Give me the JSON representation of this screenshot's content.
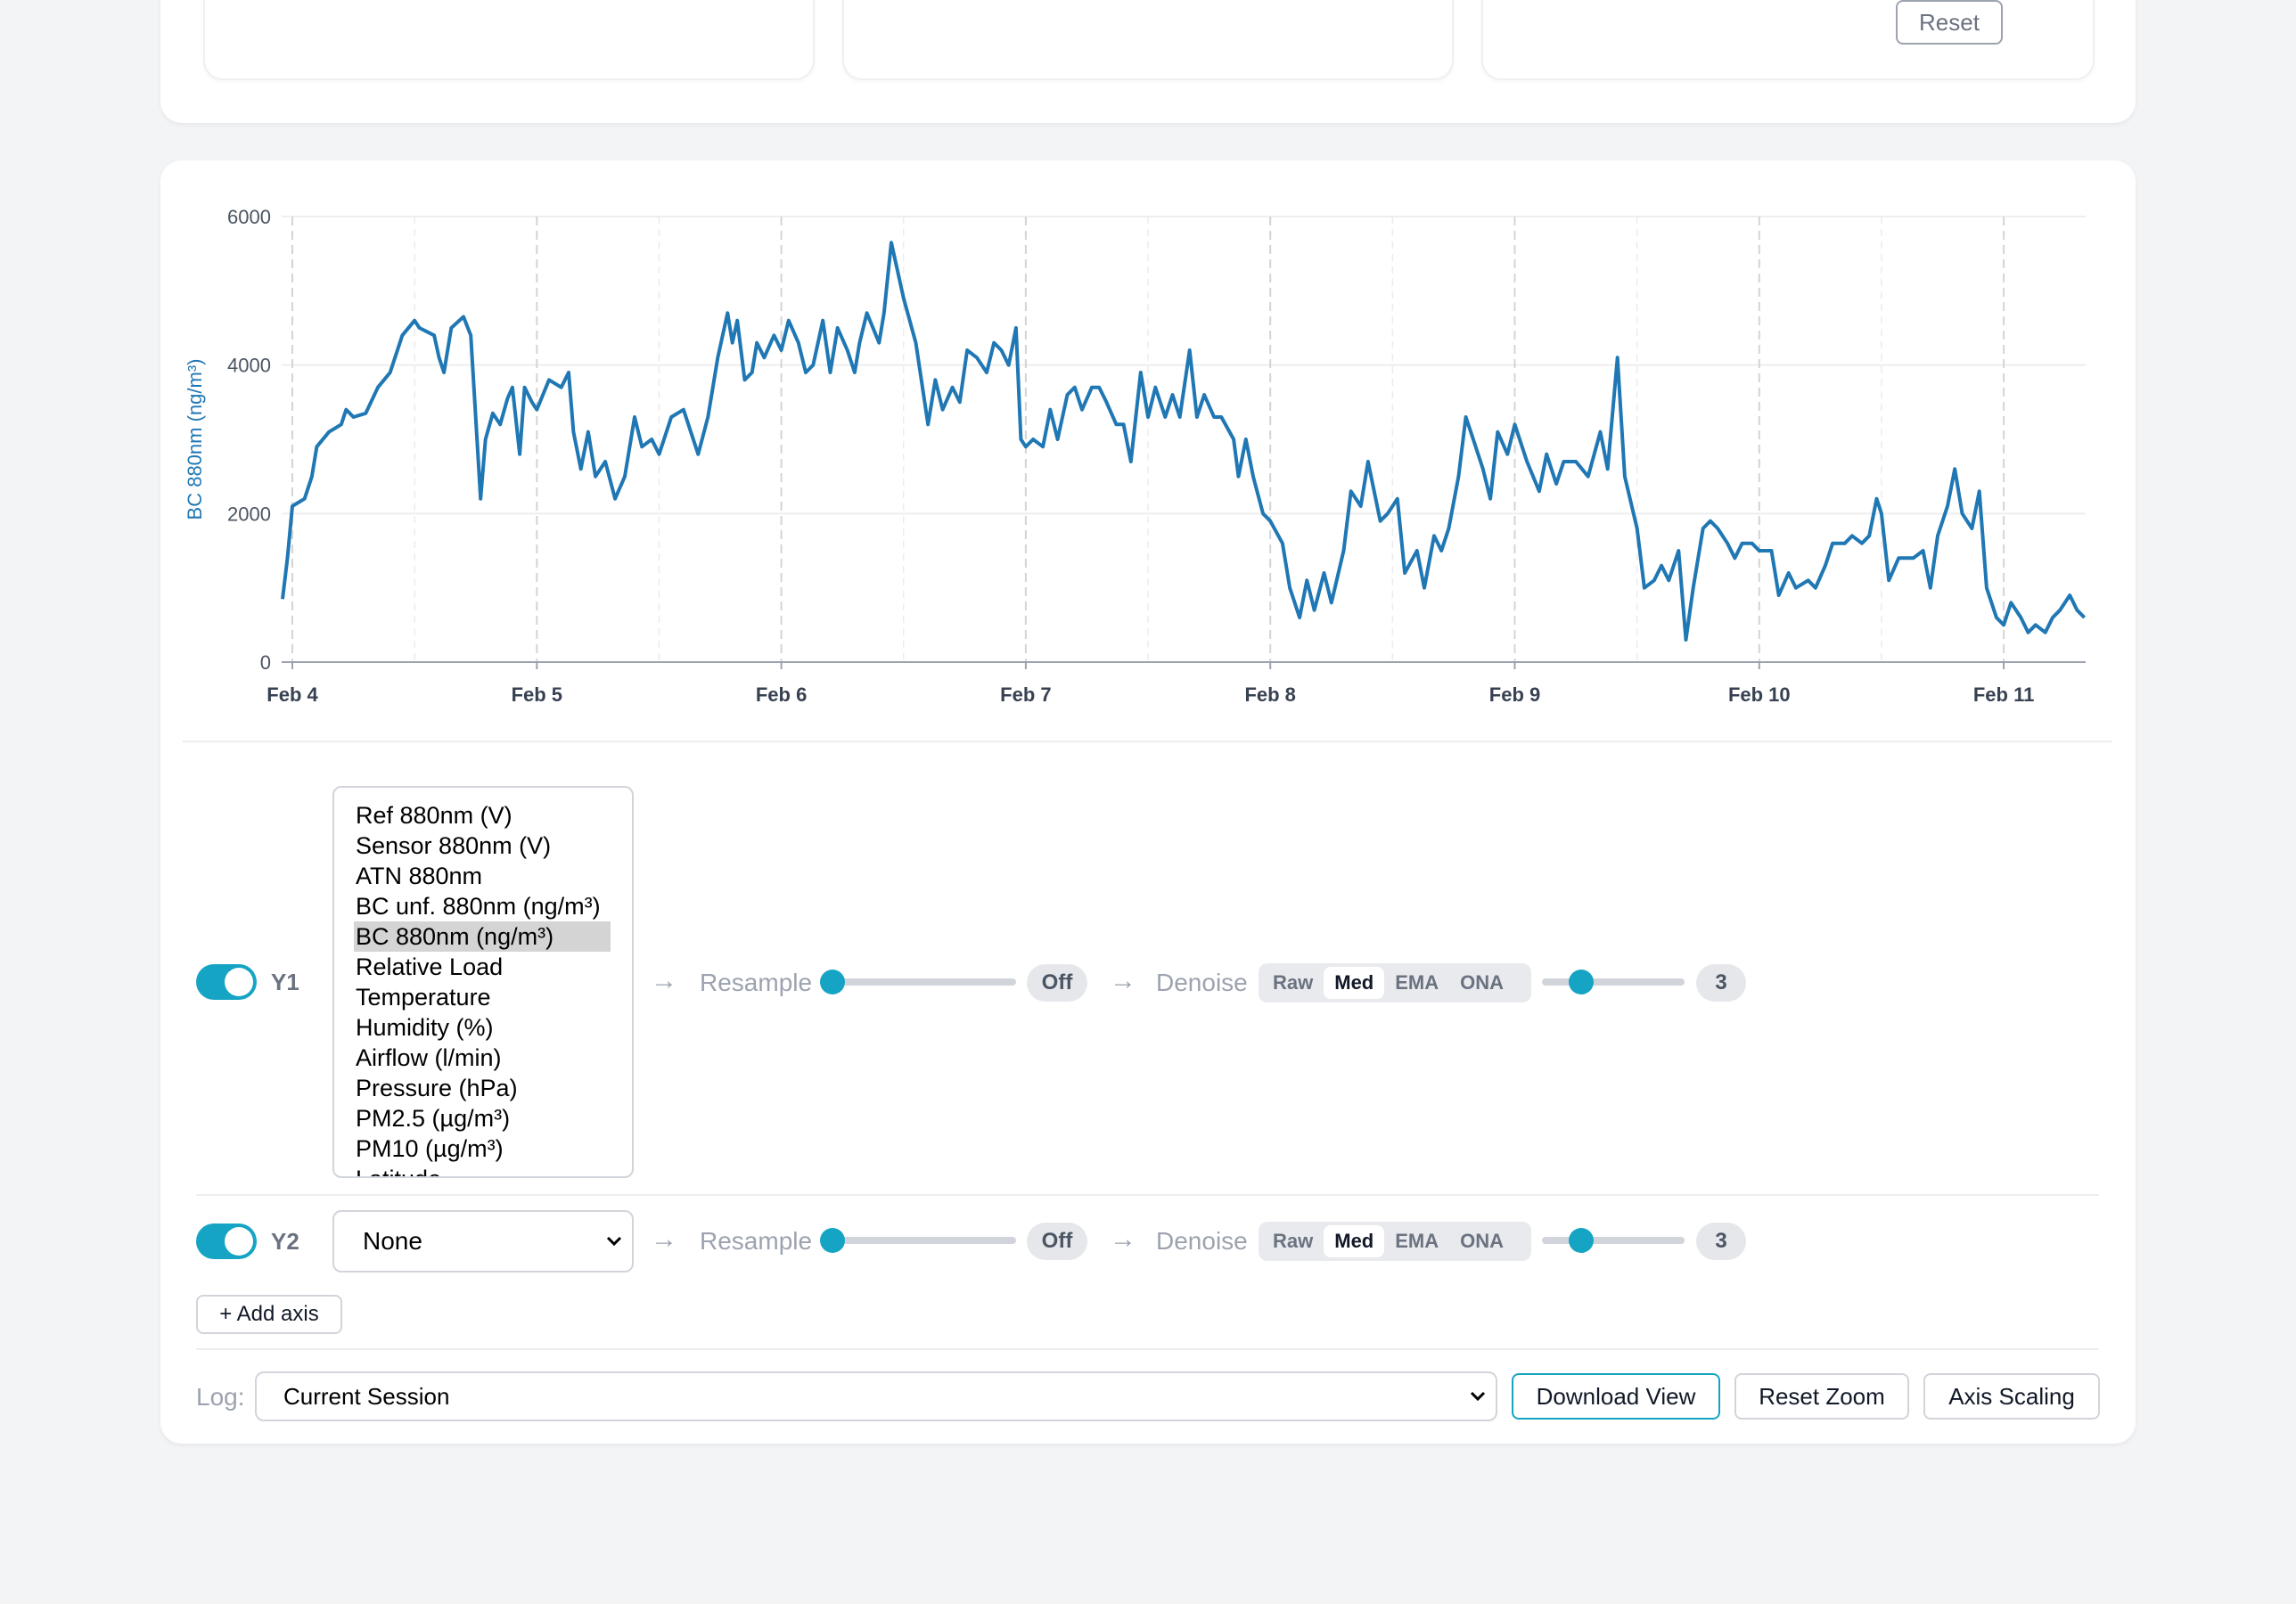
{
  "top": {
    "reset_label": "Reset"
  },
  "chart_data": {
    "type": "line",
    "ylabel": "BC 880nm (ng/m³)",
    "ylim": [
      0,
      6000
    ],
    "yticks": [
      "0",
      "2000",
      "4000",
      "6000"
    ],
    "xticks": [
      "Feb 4",
      "Feb 5",
      "Feb 6",
      "Feb 7",
      "Feb 8",
      "Feb 9",
      "Feb 10",
      "Feb 11"
    ],
    "xlim_days": [
      3.96,
      11.33
    ],
    "x_unit": "day of February",
    "color": "#1f77b4",
    "series": [
      {
        "name": "",
        "points": [
          [
            3.96,
            850
          ],
          [
            3.98,
            1400
          ],
          [
            4.0,
            2100
          ],
          [
            4.05,
            2200
          ],
          [
            4.08,
            2500
          ],
          [
            4.1,
            2900
          ],
          [
            4.15,
            3100
          ],
          [
            4.2,
            3200
          ],
          [
            4.22,
            3400
          ],
          [
            4.25,
            3300
          ],
          [
            4.3,
            3350
          ],
          [
            4.35,
            3700
          ],
          [
            4.4,
            3900
          ],
          [
            4.45,
            4400
          ],
          [
            4.5,
            4600
          ],
          [
            4.52,
            4500
          ],
          [
            4.55,
            4450
          ],
          [
            4.58,
            4400
          ],
          [
            4.6,
            4100
          ],
          [
            4.62,
            3900
          ],
          [
            4.65,
            4500
          ],
          [
            4.7,
            4650
          ],
          [
            4.73,
            4400
          ],
          [
            4.77,
            2200
          ],
          [
            4.79,
            3000
          ],
          [
            4.82,
            3350
          ],
          [
            4.85,
            3200
          ],
          [
            4.88,
            3550
          ],
          [
            4.9,
            3700
          ],
          [
            4.93,
            2800
          ],
          [
            4.95,
            3700
          ],
          [
            4.98,
            3500
          ],
          [
            5.0,
            3400
          ],
          [
            5.05,
            3800
          ],
          [
            5.1,
            3700
          ],
          [
            5.13,
            3900
          ],
          [
            5.15,
            3100
          ],
          [
            5.18,
            2600
          ],
          [
            5.21,
            3100
          ],
          [
            5.24,
            2500
          ],
          [
            5.28,
            2700
          ],
          [
            5.32,
            2200
          ],
          [
            5.36,
            2500
          ],
          [
            5.4,
            3300
          ],
          [
            5.43,
            2900
          ],
          [
            5.47,
            3000
          ],
          [
            5.5,
            2800
          ],
          [
            5.55,
            3300
          ],
          [
            5.6,
            3400
          ],
          [
            5.63,
            3100
          ],
          [
            5.66,
            2800
          ],
          [
            5.7,
            3300
          ],
          [
            5.74,
            4100
          ],
          [
            5.78,
            4700
          ],
          [
            5.8,
            4300
          ],
          [
            5.82,
            4600
          ],
          [
            5.85,
            3800
          ],
          [
            5.88,
            3900
          ],
          [
            5.9,
            4300
          ],
          [
            5.93,
            4100
          ],
          [
            5.97,
            4400
          ],
          [
            6.0,
            4200
          ],
          [
            6.03,
            4600
          ],
          [
            6.07,
            4300
          ],
          [
            6.1,
            3900
          ],
          [
            6.13,
            4000
          ],
          [
            6.17,
            4600
          ],
          [
            6.2,
            3900
          ],
          [
            6.23,
            4500
          ],
          [
            6.27,
            4200
          ],
          [
            6.3,
            3900
          ],
          [
            6.32,
            4300
          ],
          [
            6.35,
            4700
          ],
          [
            6.4,
            4300
          ],
          [
            6.42,
            4700
          ],
          [
            6.45,
            5650
          ],
          [
            6.5,
            4900
          ],
          [
            6.55,
            4300
          ],
          [
            6.6,
            3200
          ],
          [
            6.63,
            3800
          ],
          [
            6.66,
            3400
          ],
          [
            6.7,
            3700
          ],
          [
            6.73,
            3500
          ],
          [
            6.76,
            4200
          ],
          [
            6.8,
            4100
          ],
          [
            6.84,
            3900
          ],
          [
            6.87,
            4300
          ],
          [
            6.9,
            4200
          ],
          [
            6.93,
            4000
          ],
          [
            6.96,
            4500
          ],
          [
            6.98,
            3000
          ],
          [
            7.0,
            2900
          ],
          [
            7.03,
            3000
          ],
          [
            7.07,
            2900
          ],
          [
            7.1,
            3400
          ],
          [
            7.13,
            3000
          ],
          [
            7.17,
            3600
          ],
          [
            7.2,
            3700
          ],
          [
            7.23,
            3400
          ],
          [
            7.27,
            3700
          ],
          [
            7.3,
            3700
          ],
          [
            7.33,
            3500
          ],
          [
            7.37,
            3200
          ],
          [
            7.4,
            3200
          ],
          [
            7.43,
            2700
          ],
          [
            7.47,
            3900
          ],
          [
            7.5,
            3300
          ],
          [
            7.53,
            3700
          ],
          [
            7.57,
            3300
          ],
          [
            7.6,
            3600
          ],
          [
            7.63,
            3300
          ],
          [
            7.67,
            4200
          ],
          [
            7.7,
            3300
          ],
          [
            7.73,
            3600
          ],
          [
            7.77,
            3300
          ],
          [
            7.8,
            3300
          ],
          [
            7.85,
            3000
          ],
          [
            7.87,
            2500
          ],
          [
            7.9,
            3000
          ],
          [
            7.93,
            2500
          ],
          [
            7.97,
            2000
          ],
          [
            8.0,
            1900
          ],
          [
            8.05,
            1600
          ],
          [
            8.08,
            1000
          ],
          [
            8.12,
            600
          ],
          [
            8.15,
            1100
          ],
          [
            8.18,
            700
          ],
          [
            8.22,
            1200
          ],
          [
            8.25,
            800
          ],
          [
            8.3,
            1500
          ],
          [
            8.33,
            2300
          ],
          [
            8.37,
            2100
          ],
          [
            8.4,
            2700
          ],
          [
            8.45,
            1900
          ],
          [
            8.48,
            2000
          ],
          [
            8.52,
            2200
          ],
          [
            8.55,
            1200
          ],
          [
            8.6,
            1500
          ],
          [
            8.63,
            1000
          ],
          [
            8.67,
            1700
          ],
          [
            8.7,
            1500
          ],
          [
            8.73,
            1800
          ],
          [
            8.77,
            2500
          ],
          [
            8.8,
            3300
          ],
          [
            8.83,
            3000
          ],
          [
            8.87,
            2600
          ],
          [
            8.9,
            2200
          ],
          [
            8.93,
            3100
          ],
          [
            8.97,
            2800
          ],
          [
            9.0,
            3200
          ],
          [
            9.05,
            2700
          ],
          [
            9.1,
            2300
          ],
          [
            9.13,
            2800
          ],
          [
            9.17,
            2400
          ],
          [
            9.2,
            2700
          ],
          [
            9.25,
            2700
          ],
          [
            9.3,
            2500
          ],
          [
            9.35,
            3100
          ],
          [
            9.38,
            2600
          ],
          [
            9.42,
            4100
          ],
          [
            9.45,
            2500
          ],
          [
            9.5,
            1800
          ],
          [
            9.53,
            1000
          ],
          [
            9.57,
            1100
          ],
          [
            9.6,
            1300
          ],
          [
            9.63,
            1100
          ],
          [
            9.67,
            1500
          ],
          [
            9.7,
            300
          ],
          [
            9.73,
            1000
          ],
          [
            9.77,
            1800
          ],
          [
            9.8,
            1900
          ],
          [
            9.83,
            1800
          ],
          [
            9.87,
            1600
          ],
          [
            9.9,
            1400
          ],
          [
            9.93,
            1600
          ],
          [
            9.97,
            1600
          ],
          [
            10.0,
            1500
          ],
          [
            10.05,
            1500
          ],
          [
            10.08,
            900
          ],
          [
            10.12,
            1200
          ],
          [
            10.15,
            1000
          ],
          [
            10.2,
            1100
          ],
          [
            10.23,
            1000
          ],
          [
            10.27,
            1300
          ],
          [
            10.3,
            1600
          ],
          [
            10.35,
            1600
          ],
          [
            10.38,
            1700
          ],
          [
            10.42,
            1600
          ],
          [
            10.45,
            1700
          ],
          [
            10.48,
            2200
          ],
          [
            10.5,
            2000
          ],
          [
            10.53,
            1100
          ],
          [
            10.57,
            1400
          ],
          [
            10.6,
            1400
          ],
          [
            10.63,
            1400
          ],
          [
            10.67,
            1500
          ],
          [
            10.7,
            1000
          ],
          [
            10.73,
            1700
          ],
          [
            10.77,
            2100
          ],
          [
            10.8,
            2600
          ],
          [
            10.83,
            2000
          ],
          [
            10.87,
            1800
          ],
          [
            10.9,
            2300
          ],
          [
            10.93,
            1000
          ],
          [
            10.97,
            600
          ],
          [
            11.0,
            500
          ],
          [
            11.03,
            800
          ],
          [
            11.07,
            600
          ],
          [
            11.1,
            400
          ],
          [
            11.13,
            500
          ],
          [
            11.17,
            400
          ],
          [
            11.2,
            600
          ],
          [
            11.23,
            700
          ],
          [
            11.27,
            900
          ],
          [
            11.3,
            700
          ],
          [
            11.33,
            600
          ]
        ]
      }
    ]
  },
  "y1": {
    "toggle_label": "Y1",
    "options": [
      "Ref 880nm (V)",
      "Sensor 880nm (V)",
      "ATN 880nm",
      "BC unf. 880nm (ng/m³)",
      "BC 880nm (ng/m³)",
      "Relative Load",
      "Temperature",
      "Humidity (%)",
      "Airflow (l/min)",
      "Pressure (hPa)",
      "PM2.5 (µg/m³)",
      "PM10 (µg/m³)",
      "Latitude"
    ],
    "selected": "BC 880nm (ng/m³)",
    "resample_label": "Resample",
    "resample_value": "Off",
    "denoise_label": "Denoise",
    "denoise_modes": [
      "Raw",
      "Med",
      "EMA",
      "ONA"
    ],
    "denoise_active": "Med",
    "denoise_value": "3"
  },
  "y2": {
    "toggle_label": "Y2",
    "selected": "None",
    "resample_label": "Resample",
    "resample_value": "Off",
    "denoise_label": "Denoise",
    "denoise_modes": [
      "Raw",
      "Med",
      "EMA",
      "ONA"
    ],
    "denoise_active": "Med",
    "denoise_value": "3"
  },
  "add_axis_label": "+ Add axis",
  "footer": {
    "log_label": "Log:",
    "log_value": "Current Session",
    "download_label": "Download View",
    "reset_zoom_label": "Reset Zoom",
    "axis_scaling_label": "Axis Scaling"
  },
  "colors": {
    "accent": "#15a4c3",
    "line": "#1f77b4"
  }
}
